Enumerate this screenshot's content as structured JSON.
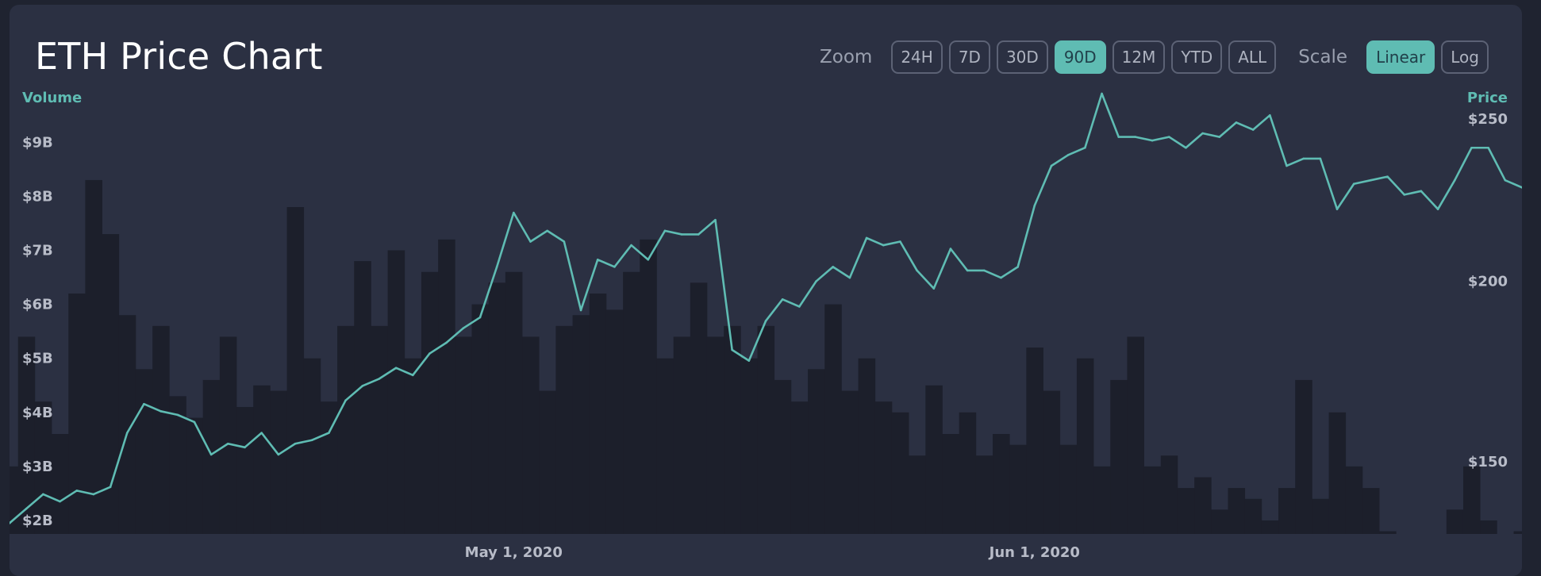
{
  "chart_data": {
    "type": "line",
    "title": "ETH Price Chart",
    "series": [
      {
        "name": "Price",
        "axis": "right",
        "color": "#5fbcb3",
        "x": [
          "2020-04-01",
          "2020-04-02",
          "2020-04-03",
          "2020-04-04",
          "2020-04-05",
          "2020-04-06",
          "2020-04-07",
          "2020-04-08",
          "2020-04-09",
          "2020-04-10",
          "2020-04-11",
          "2020-04-12",
          "2020-04-13",
          "2020-04-14",
          "2020-04-15",
          "2020-04-16",
          "2020-04-17",
          "2020-04-18",
          "2020-04-19",
          "2020-04-20",
          "2020-04-21",
          "2020-04-22",
          "2020-04-23",
          "2020-04-24",
          "2020-04-25",
          "2020-04-26",
          "2020-04-27",
          "2020-04-28",
          "2020-04-29",
          "2020-04-30",
          "2020-05-01",
          "2020-05-02",
          "2020-05-03",
          "2020-05-04",
          "2020-05-05",
          "2020-05-06",
          "2020-05-07",
          "2020-05-08",
          "2020-05-09",
          "2020-05-10",
          "2020-05-11",
          "2020-05-12",
          "2020-05-13",
          "2020-05-14",
          "2020-05-15",
          "2020-05-16",
          "2020-05-17",
          "2020-05-18",
          "2020-05-19",
          "2020-05-20",
          "2020-05-21",
          "2020-05-22",
          "2020-05-23",
          "2020-05-24",
          "2020-05-25",
          "2020-05-26",
          "2020-05-27",
          "2020-05-28",
          "2020-05-29",
          "2020-05-30",
          "2020-05-31",
          "2020-06-01",
          "2020-06-02",
          "2020-06-03",
          "2020-06-04",
          "2020-06-05",
          "2020-06-06",
          "2020-06-07",
          "2020-06-08",
          "2020-06-09",
          "2020-06-10",
          "2020-06-11",
          "2020-06-12",
          "2020-06-13",
          "2020-06-14",
          "2020-06-15",
          "2020-06-16",
          "2020-06-17",
          "2020-06-18",
          "2020-06-19",
          "2020-06-20",
          "2020-06-21",
          "2020-06-22",
          "2020-06-23",
          "2020-06-24",
          "2020-06-25",
          "2020-06-26",
          "2020-06-27",
          "2020-06-28",
          "2020-06-29",
          "2020-06-30"
        ],
        "values": [
          133,
          137,
          141,
          139,
          142,
          141,
          143,
          158,
          166,
          164,
          163,
          161,
          152,
          155,
          154,
          158,
          152,
          155,
          156,
          158,
          167,
          171,
          173,
          176,
          174,
          180,
          183,
          187,
          190,
          204,
          219,
          211,
          214,
          211,
          192,
          206,
          204,
          210,
          206,
          214,
          213,
          213,
          217,
          181,
          178,
          189,
          195,
          193,
          200,
          204,
          201,
          212,
          210,
          211,
          203,
          198,
          209,
          203,
          203,
          201,
          204,
          221,
          232,
          235,
          237,
          252,
          240,
          240,
          239,
          240,
          237,
          241,
          240,
          244,
          242,
          246,
          232,
          234,
          234,
          220,
          227,
          228,
          229,
          224,
          225,
          220,
          228,
          237,
          237,
          228,
          226
        ]
      },
      {
        "name": "Volume",
        "axis": "left",
        "color": "#1c1f2b",
        "x": [
          "2020-04-01",
          "2020-04-02",
          "2020-04-03",
          "2020-04-04",
          "2020-04-05",
          "2020-04-06",
          "2020-04-07",
          "2020-04-08",
          "2020-04-09",
          "2020-04-10",
          "2020-04-11",
          "2020-04-12",
          "2020-04-13",
          "2020-04-14",
          "2020-04-15",
          "2020-04-16",
          "2020-04-17",
          "2020-04-18",
          "2020-04-19",
          "2020-04-20",
          "2020-04-21",
          "2020-04-22",
          "2020-04-23",
          "2020-04-24",
          "2020-04-25",
          "2020-04-26",
          "2020-04-27",
          "2020-04-28",
          "2020-04-29",
          "2020-04-30",
          "2020-05-01",
          "2020-05-02",
          "2020-05-03",
          "2020-05-04",
          "2020-05-05",
          "2020-05-06",
          "2020-05-07",
          "2020-05-08",
          "2020-05-09",
          "2020-05-10",
          "2020-05-11",
          "2020-05-12",
          "2020-05-13",
          "2020-05-14",
          "2020-05-15",
          "2020-05-16",
          "2020-05-17",
          "2020-05-18",
          "2020-05-19",
          "2020-05-20",
          "2020-05-21",
          "2020-05-22",
          "2020-05-23",
          "2020-05-24",
          "2020-05-25",
          "2020-05-26",
          "2020-05-27",
          "2020-05-28",
          "2020-05-29",
          "2020-05-30",
          "2020-05-31",
          "2020-06-01",
          "2020-06-02",
          "2020-06-03",
          "2020-06-04",
          "2020-06-05",
          "2020-06-06",
          "2020-06-07",
          "2020-06-08",
          "2020-06-09",
          "2020-06-10",
          "2020-06-11",
          "2020-06-12",
          "2020-06-13",
          "2020-06-14",
          "2020-06-15",
          "2020-06-16",
          "2020-06-17",
          "2020-06-18",
          "2020-06-19",
          "2020-06-20",
          "2020-06-21",
          "2020-06-22",
          "2020-06-23",
          "2020-06-24",
          "2020-06-25",
          "2020-06-26",
          "2020-06-27",
          "2020-06-28",
          "2020-06-29",
          "2020-06-30"
        ],
        "values": [
          3.0,
          5.4,
          4.2,
          3.6,
          6.2,
          8.3,
          7.3,
          5.8,
          4.8,
          5.6,
          4.3,
          3.9,
          4.6,
          5.4,
          4.1,
          4.5,
          4.4,
          7.8,
          5.0,
          4.2,
          5.6,
          6.8,
          5.6,
          7.0,
          5.0,
          6.6,
          7.2,
          5.4,
          6.0,
          6.4,
          6.6,
          5.4,
          4.4,
          5.6,
          5.8,
          6.2,
          5.9,
          6.6,
          7.2,
          5.0,
          5.4,
          6.4,
          5.4,
          5.6,
          5.0,
          5.6,
          4.6,
          4.2,
          4.8,
          6.0,
          4.4,
          5.0,
          4.2,
          4.0,
          3.2,
          4.5,
          3.6,
          4.0,
          3.2,
          3.6,
          3.4,
          5.2,
          4.4,
          3.4,
          5.0,
          3.0,
          4.6,
          5.4,
          3.0,
          3.2,
          2.6,
          2.8,
          2.2,
          2.6,
          2.4,
          2.0,
          2.6,
          4.6,
          2.4,
          4.0,
          3.0,
          2.6,
          1.8,
          1.6,
          1.5,
          1.2,
          2.2,
          3.0,
          2.0,
          1.6,
          1.8
        ]
      }
    ],
    "x_ticks": [
      "May 1, 2020",
      "Jun 1, 2020"
    ],
    "x_tick_dates": [
      "2020-05-01",
      "2020-06-01"
    ],
    "xlim": [
      "2020-04-01",
      "2020-06-30"
    ],
    "y_left": {
      "label": "Volume",
      "ticks": [
        "$2B",
        "$3B",
        "$4B",
        "$5B",
        "$6B",
        "$7B",
        "$8B",
        "$9B"
      ],
      "tick_values": [
        2,
        3,
        4,
        5,
        6,
        7,
        8,
        9
      ],
      "unit": "billion USD",
      "ylim": [
        1.75,
        9.9
      ]
    },
    "y_right": {
      "label": "Price",
      "ticks": [
        "$150",
        "$200",
        "$250"
      ],
      "tick_values": [
        150,
        200,
        250
      ],
      "ylim": [
        130,
        252
      ]
    },
    "grid": false,
    "legend": "none"
  },
  "controls": {
    "zoom_label": "Zoom",
    "zoom_options": [
      "24H",
      "7D",
      "30D",
      "90D",
      "12M",
      "YTD",
      "ALL"
    ],
    "zoom_active": "90D",
    "scale_label": "Scale",
    "scale_options": [
      "Linear",
      "Log"
    ],
    "scale_active": "Linear"
  },
  "colors": {
    "background": "#2b3042",
    "accent": "#5fbcb3",
    "volume": "#1c1f2b",
    "text": "#b8bcc8"
  }
}
